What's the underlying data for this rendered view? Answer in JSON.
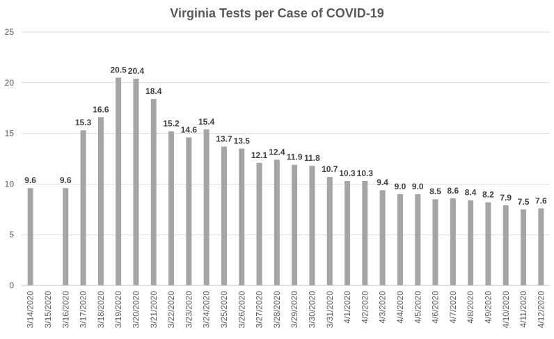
{
  "chart_data": {
    "type": "bar",
    "title": "Virginia Tests per Case of COVID-19",
    "xlabel": "",
    "ylabel": "",
    "ylim": [
      0,
      25
    ],
    "yticks": [
      0,
      5,
      10,
      15,
      20,
      25
    ],
    "grid": true,
    "legend": "none",
    "bar_color": "#a5a5a5",
    "categories": [
      "3/14/2020",
      "3/15/2020",
      "3/16/2020",
      "3/17/2020",
      "3/18/2020",
      "3/19/2020",
      "3/20/2020",
      "3/21/2020",
      "3/22/2020",
      "3/23/2020",
      "3/24/2020",
      "3/25/2020",
      "3/26/2020",
      "3/27/2020",
      "3/28/2020",
      "3/29/2020",
      "3/30/2020",
      "3/31/2020",
      "4/1/2020",
      "4/2/2020",
      "4/3/2020",
      "4/4/2020",
      "4/5/2020",
      "4/6/2020",
      "4/7/2020",
      "4/8/2020",
      "4/9/2020",
      "4/10/2020",
      "4/11/2020",
      "4/12/2020"
    ],
    "values": [
      9.6,
      null,
      9.6,
      15.3,
      16.6,
      20.5,
      20.4,
      18.4,
      15.2,
      14.6,
      15.4,
      13.7,
      13.5,
      12.1,
      12.4,
      11.9,
      11.8,
      10.7,
      10.3,
      10.3,
      9.4,
      9.0,
      9.0,
      8.5,
      8.6,
      8.4,
      8.2,
      7.9,
      7.5,
      7.6
    ],
    "data_labels": [
      "9.6",
      "",
      "9.6",
      "15.3",
      "16.6",
      "20.5",
      "20.4",
      "18.4",
      "15.2",
      "14.6",
      "15.4",
      "13.7",
      "13.5",
      "12.1",
      "12.4",
      "11.9",
      "11.8",
      "10.7",
      "10.3",
      "10.3",
      "9.4",
      "9.0",
      "9.0",
      "8.5",
      "8.6",
      "8.4",
      "8.2",
      "7.9",
      "7.5",
      "7.6"
    ]
  }
}
